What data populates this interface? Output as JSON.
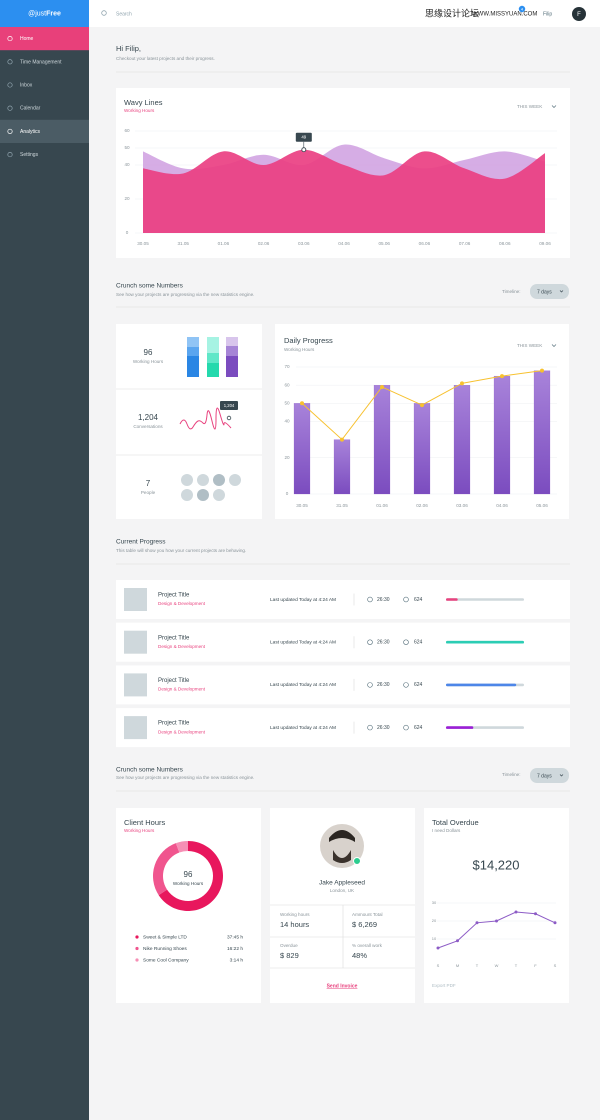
{
  "logo": {
    "prefix": "@just",
    "bold": "Free"
  },
  "header": {
    "search": "Search",
    "badge": "4",
    "user": "Filip",
    "avatar": "F",
    "watermark": "思缘设计论坛",
    "watermark_url": "WWW.MISSYUAN.COM"
  },
  "nav": {
    "items": [
      "Home",
      "Time Management",
      "Inbox",
      "Calendar",
      "Analytics",
      "Settings"
    ]
  },
  "greeting": {
    "title": "Hi Filip,",
    "subtitle": "Checkout your latest projects and their progress."
  },
  "wavy_lines": {
    "type": "area",
    "title": "Wavy Lines",
    "subtitle": "Working Hours",
    "period": "THIS WEEK",
    "categories": [
      "30.05",
      "31.05",
      "01.06",
      "02.06",
      "03.06",
      "04.06",
      "05.06",
      "06.06",
      "07.06",
      "08.06",
      "09.06"
    ],
    "ylim": [
      0,
      60
    ],
    "yticks": [
      0,
      20,
      40,
      50,
      60
    ],
    "grid": true,
    "series": [
      {
        "color": "#cf9fe0",
        "values": [
          48,
          38,
          40,
          46,
          40,
          52,
          44,
          38,
          43,
          48,
          42
        ]
      },
      {
        "color": "#ea3f82",
        "values": [
          38,
          35,
          48,
          40,
          49,
          40,
          34,
          48,
          38,
          32,
          47
        ]
      }
    ],
    "tooltip": {
      "category": "03.06",
      "value": 49
    }
  },
  "section_1": {
    "title": "Crunch some Numbers",
    "subtitle": "See how your projects are progressing via the new statistics engine.",
    "timeline_label": "Timeline:",
    "timeline_value": "7 days"
  },
  "stats": [
    {
      "value": "96",
      "label": "Working Hours"
    },
    {
      "value": "1,204",
      "label": "Conversations",
      "tooltip": "1,204"
    },
    {
      "value": "7",
      "label": "People"
    }
  ],
  "daily_progress": {
    "type": "bar",
    "title": "Daily Progress",
    "subtitle": "Working Hours",
    "period": "THIS WEEK",
    "categories": [
      "30.05",
      "31.05",
      "01.06",
      "02.06",
      "03.06",
      "04.06",
      "05.06"
    ],
    "ylim": [
      0,
      70
    ],
    "yticks": [
      0,
      20,
      40,
      50,
      60,
      70
    ],
    "grid": true,
    "series": [
      {
        "type": "bar",
        "color": "#8d5cc6",
        "values": [
          50,
          30,
          60,
          50,
          60,
          65,
          68
        ]
      },
      {
        "type": "line",
        "color": "#f7c12f",
        "values": [
          50,
          30,
          59,
          49,
          61,
          65,
          68
        ]
      }
    ]
  },
  "current_progress": {
    "title": "Current Progress",
    "subtitle": "This table will show you how your current projects are behaving.",
    "xlim": [
      0,
      100
    ],
    "rows": [
      {
        "title": "Project Title",
        "subtitle": "Design & Development",
        "updated": "Last updated Today at 4:24 AM",
        "time": "26:30",
        "comments": "624",
        "progress": 15,
        "color": "#e8437f"
      },
      {
        "title": "Project Title",
        "subtitle": "Design & Development",
        "updated": "Last updated Today at 4:24 AM",
        "time": "26:30",
        "comments": "624",
        "progress": 100,
        "color": "#2ccdb4"
      },
      {
        "title": "Project Title",
        "subtitle": "Design & Development",
        "updated": "Last updated Today at 4:24 AM",
        "time": "26:30",
        "comments": "624",
        "progress": 90,
        "color": "#4d86e8"
      },
      {
        "title": "Project Title",
        "subtitle": "Design & Development",
        "updated": "Last updated Today at 4:24 AM",
        "time": "26:30",
        "comments": "624",
        "progress": 35,
        "color": "#9b1fd6"
      }
    ]
  },
  "section_2": {
    "title": "Crunch some Numbers",
    "subtitle": "See how your projects are progressing via the new statistics engine.",
    "timeline_label": "Timeline:",
    "timeline_value": "7 days"
  },
  "client_hours": {
    "type": "pie",
    "title": "Client Hours",
    "subtitle": "Working Hours",
    "center_value": "96",
    "center_label": "Working Hours",
    "categories": [
      "Sweet & Simple LTD",
      "Nike Running Shoes",
      "Some Cool Company"
    ],
    "values": [
      37.75,
      16.37,
      3.23
    ],
    "value_labels": [
      "37:45 h",
      "16:22 h",
      "3:14 h"
    ],
    "colors": [
      "#e8175d",
      "#f0558e",
      "#f68fb5"
    ]
  },
  "profile": {
    "name": "Jake Appleseed",
    "location": "London, UK",
    "stats": [
      {
        "label": "Working hours",
        "value": "14 hours"
      },
      {
        "label": "Ammount Total",
        "value": "$ 6,269"
      },
      {
        "label": "Overdue",
        "value": "$ 829"
      },
      {
        "label": "% overall work",
        "value": "48%"
      }
    ],
    "action": "Send Invoice"
  },
  "total_overdue": {
    "type": "line",
    "title": "Total Overdue",
    "subtitle": "I need Dollars",
    "amount": "$14,220",
    "categories": [
      "S",
      "M",
      "T",
      "W",
      "T",
      "F",
      "S"
    ],
    "values": [
      5,
      9,
      19,
      20,
      25,
      24,
      19
    ],
    "ylim": [
      0,
      30
    ],
    "yticks": [
      10,
      20,
      30
    ],
    "grid": true,
    "color": "#8d5cc6",
    "footer": "Export PDF"
  }
}
